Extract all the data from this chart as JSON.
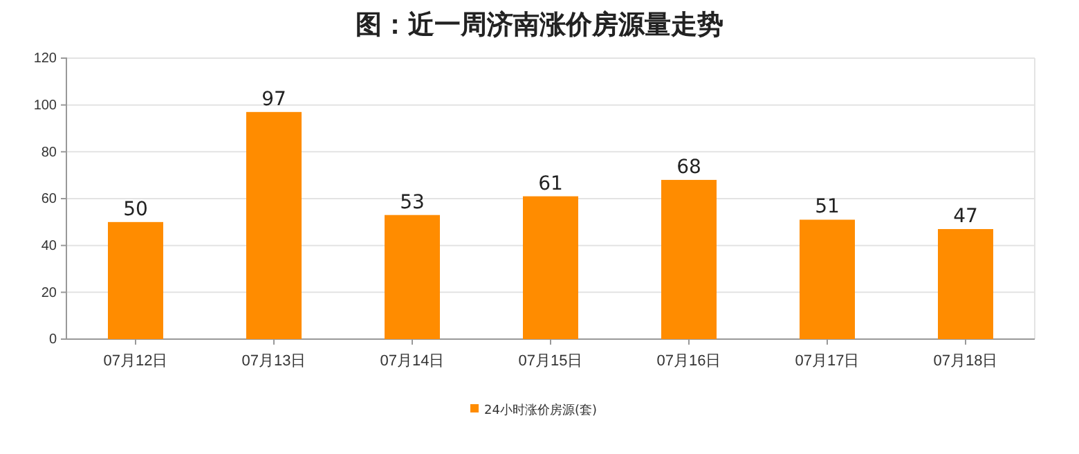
{
  "chart_data": {
    "type": "bar",
    "title": "图：近一周济南涨价房源量走势",
    "categories": [
      "07月12日",
      "07月13日",
      "07月14日",
      "07月15日",
      "07月16日",
      "07月17日",
      "07月18日"
    ],
    "series": [
      {
        "name": "24小时涨价房源(套)",
        "color": "#ff8c00",
        "values": [
          50,
          97,
          53,
          61,
          68,
          51,
          47
        ]
      }
    ],
    "ylim": [
      0,
      120
    ],
    "yticks": [
      0,
      20,
      40,
      60,
      80,
      100,
      120
    ],
    "grid": "y",
    "legend": "bottom",
    "data_labels": true
  }
}
